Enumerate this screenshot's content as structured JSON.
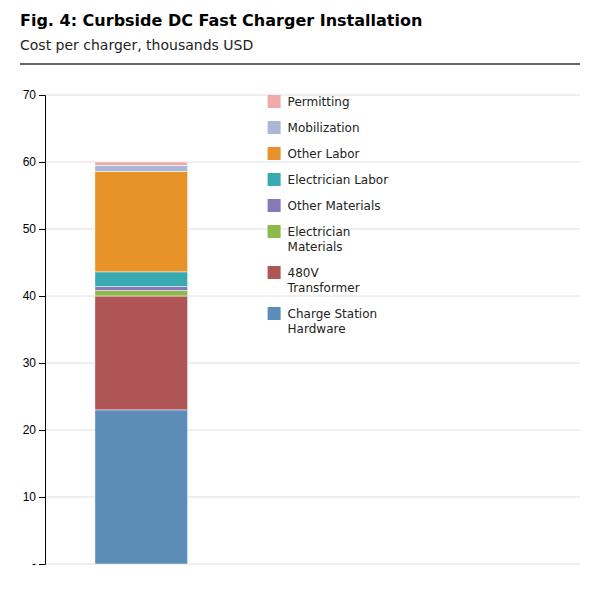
{
  "chart_data": {
    "type": "bar",
    "stacked": true,
    "title": "Fig. 4: Curbside DC Fast Charger Installation",
    "subtitle": "Cost per charger, thousands USD",
    "categories": [
      null
    ],
    "series": [
      {
        "name": "Charge Station\nHardware",
        "color": "#5b8db8",
        "values": [
          23.0
        ]
      },
      {
        "name": "480V\nTransformer",
        "color": "#b05555",
        "values": [
          17.0
        ]
      },
      {
        "name": "Electrician\nMaterials",
        "color": "#8db84a",
        "values": [
          0.8
        ]
      },
      {
        "name": "Other Materials",
        "color": "#8878b8",
        "values": [
          0.6
        ]
      },
      {
        "name": "Electrician Labor",
        "color": "#3aaab0",
        "values": [
          2.2
        ]
      },
      {
        "name": "Other Labor",
        "color": "#e8932a",
        "values": [
          15.0
        ]
      },
      {
        "name": "Mobilization",
        "color": "#aab8d8",
        "values": [
          0.9
        ]
      },
      {
        "name": "Permitting",
        "color": "#f0aaaa",
        "values": [
          0.5
        ]
      }
    ],
    "ylim": [
      0,
      70
    ],
    "yticks": [
      {
        "value": 0,
        "label": "-"
      },
      10,
      20,
      30,
      40,
      50,
      60,
      70
    ],
    "grid": true,
    "legend": "upper right"
  }
}
